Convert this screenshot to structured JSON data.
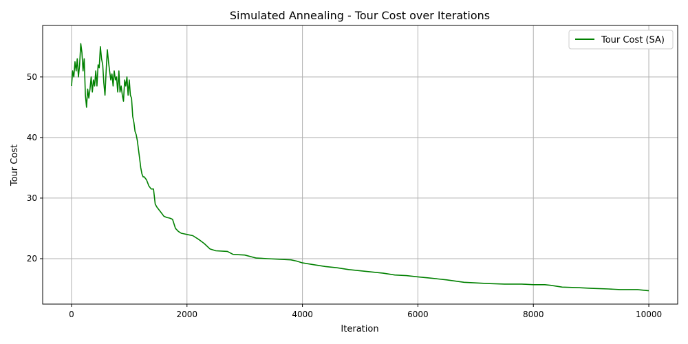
{
  "chart_data": {
    "type": "line",
    "title": "Simulated Annealing - Tour Cost over Iterations",
    "xlabel": "Iteration",
    "ylabel": "Tour Cost",
    "xlim": [
      -500,
      10500
    ],
    "ylim": [
      12.5,
      58.5
    ],
    "xticks": [
      0,
      2000,
      4000,
      6000,
      8000,
      10000
    ],
    "yticks": [
      20,
      30,
      40,
      50
    ],
    "grid": true,
    "legend_position": "top-right",
    "colors": {
      "series": "#008000",
      "grid": "#b0b0b0"
    },
    "series": [
      {
        "name": "Tour Cost (SA)",
        "x": [
          0,
          20,
          40,
          60,
          80,
          100,
          120,
          140,
          160,
          180,
          200,
          220,
          240,
          260,
          280,
          300,
          320,
          340,
          360,
          380,
          400,
          420,
          440,
          460,
          480,
          500,
          520,
          540,
          560,
          580,
          600,
          620,
          640,
          660,
          680,
          700,
          720,
          740,
          760,
          780,
          800,
          820,
          840,
          860,
          880,
          900,
          920,
          940,
          960,
          980,
          1000,
          1020,
          1040,
          1060,
          1080,
          1100,
          1120,
          1140,
          1160,
          1180,
          1200,
          1220,
          1240,
          1260,
          1300,
          1340,
          1380,
          1420,
          1450,
          1480,
          1520,
          1560,
          1600,
          1650,
          1700,
          1750,
          1800,
          1850,
          1900,
          1950,
          2000,
          2100,
          2200,
          2300,
          2400,
          2500,
          2700,
          2800,
          3000,
          3200,
          3400,
          3600,
          3800,
          3900,
          4000,
          4200,
          4400,
          4600,
          4800,
          5000,
          5200,
          5400,
          5600,
          5800,
          6000,
          6200,
          6500,
          6800,
          7000,
          7200,
          7500,
          7800,
          8000,
          8200,
          8300,
          8500,
          8800,
          9000,
          9300,
          9500,
          9800,
          10000
        ],
        "values": [
          48.5,
          51,
          50,
          52.5,
          51,
          53,
          50,
          52,
          55.5,
          54,
          51,
          53,
          47,
          45,
          48,
          46.5,
          48,
          50,
          47.5,
          49.5,
          48.5,
          51,
          48.5,
          52,
          51.5,
          55,
          53,
          52,
          49,
          47,
          51,
          54.5,
          52.5,
          51,
          49.5,
          50.5,
          48.5,
          51,
          49.5,
          50,
          47.5,
          51,
          47.5,
          48.5,
          47,
          46,
          49.5,
          48.5,
          50,
          47,
          49.5,
          47,
          46.5,
          43.5,
          42.5,
          41,
          40.5,
          39.5,
          38,
          36.5,
          35,
          34,
          33.5,
          33.5,
          33,
          32,
          31.5,
          31.5,
          29,
          28.5,
          28,
          27.5,
          27,
          26.8,
          26.7,
          26.5,
          25,
          24.5,
          24.2,
          24.1,
          24,
          23.8,
          23.2,
          22.5,
          21.6,
          21.3,
          21.2,
          20.7,
          20.6,
          20.1,
          20,
          19.9,
          19.8,
          19.6,
          19.3,
          19,
          18.7,
          18.5,
          18.2,
          18,
          17.8,
          17.6,
          17.3,
          17.2,
          17,
          16.8,
          16.5,
          16.1,
          16,
          15.9,
          15.8,
          15.8,
          15.7,
          15.7,
          15.6,
          15.3,
          15.2,
          15.1,
          15,
          14.9,
          14.9,
          14.7
        ]
      }
    ]
  }
}
